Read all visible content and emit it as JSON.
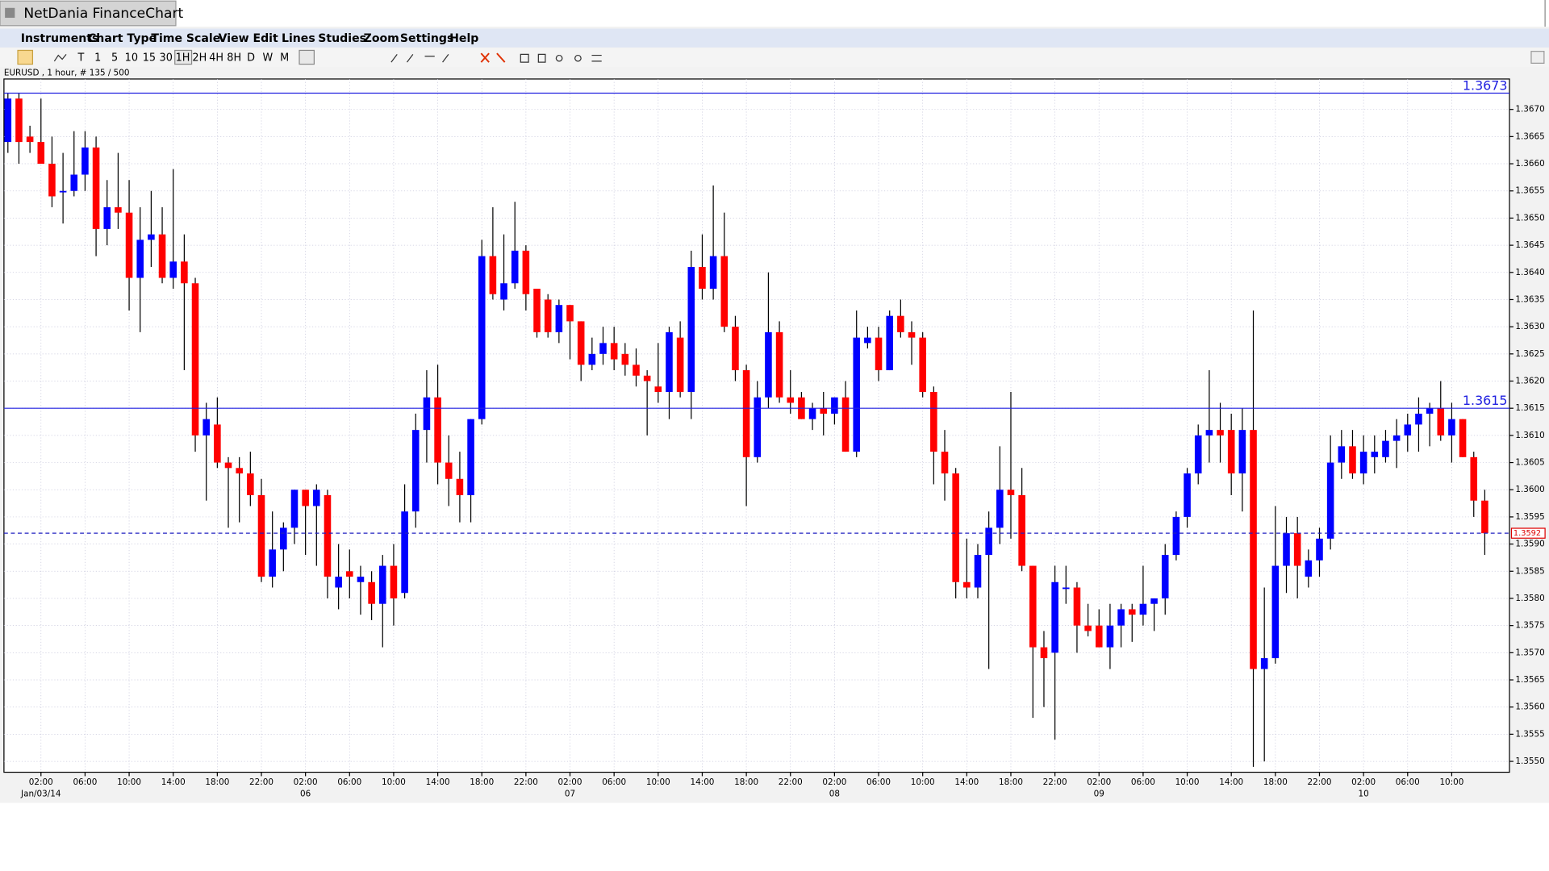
{
  "window": {
    "title": "NetDania FinanceChart"
  },
  "menu": [
    "Instruments",
    "Chart Type",
    "Time Scale",
    "View",
    "Edit",
    "Lines",
    "Studies",
    "Zoom",
    "Settings",
    "Help"
  ],
  "toolbar": [
    "T",
    "1",
    "5",
    "10",
    "15",
    "30",
    "1H",
    "2H",
    "4H",
    "8H",
    "D",
    "W",
    "M"
  ],
  "info": "EURUSD , 1 hour, # 135 / 500",
  "chart_data": {
    "type": "candlestick",
    "up_color": "#0000ff",
    "down_color": "#ff0000",
    "ylim": [
      1.3548,
      1.36756
    ],
    "yticks": [
      {
        "value": 1.355,
        "label": "1.3550"
      },
      1.3555,
      {
        "value": 1.356,
        "label": "1.3560"
      },
      1.3565,
      {
        "value": 1.357,
        "label": "1.3570"
      },
      1.3575,
      {
        "value": 1.358,
        "label": "1.3580"
      },
      1.3585,
      {
        "value": 1.359,
        "label": "1.3590"
      },
      1.3595,
      {
        "value": 1.36,
        "label": "1.3600"
      },
      1.3605,
      {
        "value": 1.361,
        "label": "1.3610"
      },
      1.3615,
      {
        "value": 1.362,
        "label": "1.3620"
      },
      1.3625,
      {
        "value": 1.363,
        "label": "1.3630"
      },
      1.3635,
      {
        "value": 1.364,
        "label": "1.3640"
      },
      1.3645,
      {
        "value": 1.365,
        "label": "1.3650"
      },
      1.3655,
      {
        "value": 1.366,
        "label": "1.3660"
      },
      1.3665,
      {
        "value": 1.367,
        "label": "1.3670"
      }
    ],
    "xticks": [
      {
        "value": 3,
        "label": "02:00"
      },
      {
        "value": 7,
        "label": "06:00"
      },
      {
        "value": 11,
        "label": "10:00"
      },
      {
        "value": 15,
        "label": "14:00"
      },
      {
        "value": 19,
        "label": "18:00"
      },
      {
        "value": 23,
        "label": "22:00"
      },
      {
        "value": 27,
        "label": "02:00"
      },
      {
        "value": 31,
        "label": "06:00"
      },
      {
        "value": 35,
        "label": "10:00"
      },
      {
        "value": 39,
        "label": "14:00"
      },
      {
        "value": 43,
        "label": "18:00"
      },
      {
        "value": 47,
        "label": "22:00"
      },
      {
        "value": 51,
        "label": "02:00"
      },
      {
        "value": 55,
        "label": "06:00"
      },
      {
        "value": 59,
        "label": "10:00"
      },
      {
        "value": 63,
        "label": "14:00"
      },
      {
        "value": 67,
        "label": "18:00"
      },
      {
        "value": 71,
        "label": "22:00"
      },
      {
        "value": 75,
        "label": "02:00"
      },
      {
        "value": 79,
        "label": "06:00"
      },
      {
        "value": 83,
        "label": "10:00"
      },
      {
        "value": 87,
        "label": "14:00"
      },
      {
        "value": 91,
        "label": "18:00"
      },
      {
        "value": 95,
        "label": "22:00"
      },
      {
        "value": 99,
        "label": "02:00"
      },
      {
        "value": 103,
        "label": "06:00"
      },
      {
        "value": 107,
        "label": "10:00"
      },
      {
        "value": 111,
        "label": "14:00"
      },
      {
        "value": 115,
        "label": "18:00"
      },
      {
        "value": 119,
        "label": "22:00"
      },
      {
        "value": 123,
        "label": "02:00"
      },
      {
        "value": 127,
        "label": "06:00"
      },
      {
        "value": 131,
        "label": "10:00"
      }
    ],
    "date_labels": [
      {
        "value": 3,
        "label": "Jan/03/14"
      },
      {
        "value": 27,
        "label": "06"
      },
      {
        "value": 51,
        "label": "07"
      },
      {
        "value": 75,
        "label": "08"
      },
      {
        "value": 99,
        "label": "09"
      },
      {
        "value": 123,
        "label": "10"
      }
    ],
    "hlines": [
      1.3673,
      1.3615
    ],
    "last_price": 1.3592,
    "candles": [
      [
        1.3664,
        1.3673,
        1.3662,
        1.3672
      ],
      [
        1.3672,
        1.3673,
        1.366,
        1.3664
      ],
      [
        1.3665,
        1.3667,
        1.3662,
        1.3664
      ],
      [
        1.3664,
        1.3672,
        1.366,
        1.366
      ],
      [
        1.366,
        1.3665,
        1.3652,
        1.3654
      ],
      [
        1.3655,
        1.3662,
        1.3649,
        1.3655
      ],
      [
        1.3655,
        1.3666,
        1.3654,
        1.3658
      ],
      [
        1.3658,
        1.3666,
        1.3655,
        1.3663
      ],
      [
        1.3663,
        1.3665,
        1.3643,
        1.3648
      ],
      [
        1.3648,
        1.3657,
        1.3645,
        1.3652
      ],
      [
        1.3652,
        1.3662,
        1.3648,
        1.3651
      ],
      [
        1.3651,
        1.3657,
        1.3633,
        1.3639
      ],
      [
        1.3639,
        1.3652,
        1.3629,
        1.3646
      ],
      [
        1.3646,
        1.3655,
        1.3641,
        1.3647
      ],
      [
        1.3647,
        1.3652,
        1.3638,
        1.3639
      ],
      [
        1.3639,
        1.3659,
        1.3637,
        1.3642
      ],
      [
        1.3642,
        1.3647,
        1.3622,
        1.3638
      ],
      [
        1.3638,
        1.3639,
        1.3607,
        1.361
      ],
      [
        1.361,
        1.3616,
        1.3598,
        1.3613
      ],
      [
        1.3612,
        1.3617,
        1.3604,
        1.3605
      ],
      [
        1.3605,
        1.3606,
        1.3593,
        1.3604
      ],
      [
        1.3604,
        1.3606,
        1.3594,
        1.3603
      ],
      [
        1.3603,
        1.3607,
        1.3597,
        1.3599
      ],
      [
        1.3599,
        1.3602,
        1.3583,
        1.3584
      ],
      [
        1.3584,
        1.3596,
        1.3582,
        1.3589
      ],
      [
        1.3589,
        1.3594,
        1.3585,
        1.3593
      ],
      [
        1.3593,
        1.36,
        1.359,
        1.36
      ],
      [
        1.36,
        1.36,
        1.3588,
        1.3597
      ],
      [
        1.3597,
        1.3601,
        1.3586,
        1.36
      ],
      [
        1.3599,
        1.36,
        1.358,
        1.3584
      ],
      [
        1.3582,
        1.359,
        1.3578,
        1.3584
      ],
      [
        1.3585,
        1.3589,
        1.358,
        1.3584
      ],
      [
        1.3583,
        1.3586,
        1.3577,
        1.3584
      ],
      [
        1.3583,
        1.3585,
        1.3576,
        1.3579
      ],
      [
        1.3579,
        1.3588,
        1.3571,
        1.3586
      ],
      [
        1.3586,
        1.359,
        1.3575,
        1.358
      ],
      [
        1.3581,
        1.3601,
        1.358,
        1.3596
      ],
      [
        1.3596,
        1.3614,
        1.3593,
        1.3611
      ],
      [
        1.3611,
        1.3622,
        1.3605,
        1.3617
      ],
      [
        1.3617,
        1.3623,
        1.3601,
        1.3605
      ],
      [
        1.3605,
        1.361,
        1.3597,
        1.3602
      ],
      [
        1.3602,
        1.3607,
        1.3594,
        1.3599
      ],
      [
        1.3599,
        1.3613,
        1.3594,
        1.3613
      ],
      [
        1.3613,
        1.3646,
        1.3612,
        1.3643
      ],
      [
        1.3643,
        1.3652,
        1.3635,
        1.3636
      ],
      [
        1.3635,
        1.3647,
        1.3633,
        1.3638
      ],
      [
        1.3638,
        1.3653,
        1.3637,
        1.3644
      ],
      [
        1.3644,
        1.3645,
        1.3633,
        1.3636
      ],
      [
        1.3637,
        1.3637,
        1.3628,
        1.3629
      ],
      [
        1.3635,
        1.3636,
        1.3628,
        1.3629
      ],
      [
        1.3629,
        1.3635,
        1.3627,
        1.3634
      ],
      [
        1.3634,
        1.3634,
        1.3624,
        1.3631
      ],
      [
        1.3631,
        1.3631,
        1.362,
        1.3623
      ],
      [
        1.3623,
        1.3628,
        1.3622,
        1.3625
      ],
      [
        1.3625,
        1.363,
        1.3623,
        1.3627
      ],
      [
        1.3627,
        1.363,
        1.3622,
        1.3624
      ],
      [
        1.3625,
        1.3627,
        1.3621,
        1.3623
      ],
      [
        1.3623,
        1.3626,
        1.3619,
        1.3621
      ],
      [
        1.3621,
        1.3622,
        1.361,
        1.362
      ],
      [
        1.3619,
        1.3627,
        1.3616,
        1.3618
      ],
      [
        1.3618,
        1.363,
        1.3613,
        1.3629
      ],
      [
        1.3628,
        1.3631,
        1.3617,
        1.3618
      ],
      [
        1.3618,
        1.3644,
        1.3613,
        1.3641
      ],
      [
        1.3641,
        1.3647,
        1.3635,
        1.3637
      ],
      [
        1.3637,
        1.3656,
        1.3635,
        1.3643
      ],
      [
        1.3643,
        1.3651,
        1.3629,
        1.363
      ],
      [
        1.363,
        1.3632,
        1.362,
        1.3622
      ],
      [
        1.3622,
        1.3623,
        1.3597,
        1.3606
      ],
      [
        1.3606,
        1.362,
        1.3605,
        1.3617
      ],
      [
        1.3617,
        1.364,
        1.3615,
        1.3629
      ],
      [
        1.3629,
        1.3631,
        1.3616,
        1.3617
      ],
      [
        1.3617,
        1.3622,
        1.3614,
        1.3616
      ],
      [
        1.3617,
        1.3618,
        1.3613,
        1.3613
      ],
      [
        1.3613,
        1.3616,
        1.3611,
        1.3615
      ],
      [
        1.3615,
        1.3618,
        1.361,
        1.3614
      ],
      [
        1.3614,
        1.3617,
        1.3612,
        1.3617
      ],
      [
        1.3617,
        1.362,
        1.3607,
        1.3607
      ],
      [
        1.3607,
        1.3633,
        1.3606,
        1.3628
      ],
      [
        1.3627,
        1.363,
        1.3626,
        1.3628
      ],
      [
        1.3628,
        1.363,
        1.362,
        1.3622
      ],
      [
        1.3622,
        1.3633,
        1.3622,
        1.3632
      ],
      [
        1.3632,
        1.3635,
        1.3628,
        1.3629
      ],
      [
        1.3629,
        1.3631,
        1.3623,
        1.3628
      ],
      [
        1.3628,
        1.3629,
        1.3617,
        1.3618
      ],
      [
        1.3618,
        1.3619,
        1.3601,
        1.3607
      ],
      [
        1.3607,
        1.3611,
        1.3598,
        1.3603
      ],
      [
        1.3603,
        1.3604,
        1.358,
        1.3583
      ],
      [
        1.3583,
        1.3591,
        1.358,
        1.3582
      ],
      [
        1.3582,
        1.359,
        1.358,
        1.3588
      ],
      [
        1.3588,
        1.3596,
        1.3567,
        1.3593
      ],
      [
        1.3593,
        1.3608,
        1.359,
        1.36
      ],
      [
        1.36,
        1.3618,
        1.3591,
        1.3599
      ],
      [
        1.3599,
        1.3604,
        1.3585,
        1.3586
      ],
      [
        1.3586,
        1.3586,
        1.3558,
        1.3571
      ],
      [
        1.3571,
        1.3574,
        1.356,
        1.3569
      ],
      [
        1.357,
        1.3586,
        1.3554,
        1.3583
      ],
      [
        1.3582,
        1.3586,
        1.3579,
        1.3582
      ],
      [
        1.3582,
        1.3583,
        1.357,
        1.3575
      ],
      [
        1.3575,
        1.3579,
        1.3573,
        1.3574
      ],
      [
        1.3575,
        1.3578,
        1.3571,
        1.3571
      ],
      [
        1.3571,
        1.3579,
        1.3567,
        1.3575
      ],
      [
        1.3575,
        1.3579,
        1.3571,
        1.3578
      ],
      [
        1.3578,
        1.3579,
        1.3572,
        1.3577
      ],
      [
        1.3577,
        1.3586,
        1.3575,
        1.3579
      ],
      [
        1.3579,
        1.358,
        1.3574,
        1.358
      ],
      [
        1.358,
        1.359,
        1.3577,
        1.3588
      ],
      [
        1.3588,
        1.3596,
        1.3587,
        1.3595
      ],
      [
        1.3595,
        1.3604,
        1.3593,
        1.3603
      ],
      [
        1.3603,
        1.3612,
        1.3601,
        1.361
      ],
      [
        1.361,
        1.3622,
        1.3605,
        1.3611
      ],
      [
        1.3611,
        1.3616,
        1.3605,
        1.361
      ],
      [
        1.3611,
        1.3614,
        1.3599,
        1.3603
      ],
      [
        1.3603,
        1.3615,
        1.3596,
        1.3611
      ],
      [
        1.3611,
        1.3633,
        1.3549,
        1.3567
      ],
      [
        1.3567,
        1.3582,
        1.355,
        1.3569
      ],
      [
        1.3569,
        1.3597,
        1.3568,
        1.3586
      ],
      [
        1.3586,
        1.3595,
        1.3581,
        1.3592
      ],
      [
        1.3592,
        1.3595,
        1.358,
        1.3586
      ],
      [
        1.3584,
        1.3589,
        1.3582,
        1.3587
      ],
      [
        1.3587,
        1.3593,
        1.3584,
        1.3591
      ],
      [
        1.3591,
        1.361,
        1.3589,
        1.3605
      ],
      [
        1.3605,
        1.3611,
        1.3602,
        1.3608
      ],
      [
        1.3608,
        1.3611,
        1.3602,
        1.3603
      ],
      [
        1.3603,
        1.361,
        1.3601,
        1.3607
      ],
      [
        1.3606,
        1.361,
        1.3603,
        1.3607
      ],
      [
        1.3606,
        1.3611,
        1.3605,
        1.3609
      ],
      [
        1.3609,
        1.3613,
        1.3604,
        1.361
      ],
      [
        1.361,
        1.3614,
        1.3607,
        1.3612
      ],
      [
        1.3612,
        1.3617,
        1.3607,
        1.3614
      ],
      [
        1.3614,
        1.3616,
        1.3608,
        1.3615
      ],
      [
        1.3615,
        1.362,
        1.3609,
        1.361
      ],
      [
        1.361,
        1.3616,
        1.3605,
        1.3613
      ],
      [
        1.3613,
        1.3613,
        1.3606,
        1.3606
      ],
      [
        1.3606,
        1.3607,
        1.3595,
        1.3598
      ],
      [
        1.3598,
        1.36,
        1.3588,
        1.3592
      ]
    ]
  }
}
